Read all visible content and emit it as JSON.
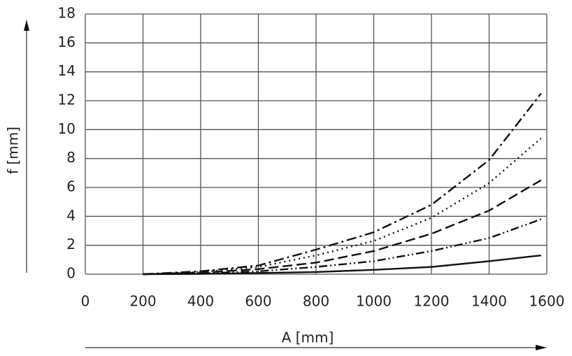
{
  "chart_data": {
    "type": "line",
    "xlabel": "A [mm]",
    "ylabel": "f [mm]",
    "x": [
      200,
      400,
      600,
      800,
      1000,
      1200,
      1400,
      1580
    ],
    "series": [
      {
        "color": "#111111",
        "dash": "14 5 3 5",
        "values": [
          0,
          0.2,
          0.6,
          1.7,
          2.9,
          4.8,
          7.9,
          12.5
        ]
      },
      {
        "color": "#111111",
        "dash": "2 5",
        "values": [
          0,
          0.15,
          0.5,
          1.3,
          2.3,
          3.9,
          6.3,
          9.4
        ]
      },
      {
        "color": "#111111",
        "dash": "14 6",
        "values": [
          0,
          0.1,
          0.35,
          0.8,
          1.6,
          2.8,
          4.4,
          6.5
        ]
      },
      {
        "color": "#111111",
        "dash": "12 4 2 4 2 4",
        "values": [
          0,
          0.05,
          0.2,
          0.5,
          0.9,
          1.6,
          2.5,
          3.8
        ]
      },
      {
        "color": "#111111",
        "dash": "none",
        "values": [
          0,
          0.02,
          0.08,
          0.15,
          0.3,
          0.5,
          0.9,
          1.3
        ]
      }
    ],
    "xlim": [
      0,
      1600
    ],
    "ylim": [
      0,
      18
    ],
    "xticks": [
      0,
      200,
      400,
      600,
      800,
      1000,
      1200,
      1400,
      1600
    ],
    "yticks": [
      0,
      2,
      4,
      6,
      8,
      10,
      12,
      14,
      16,
      18
    ],
    "grid": true
  }
}
